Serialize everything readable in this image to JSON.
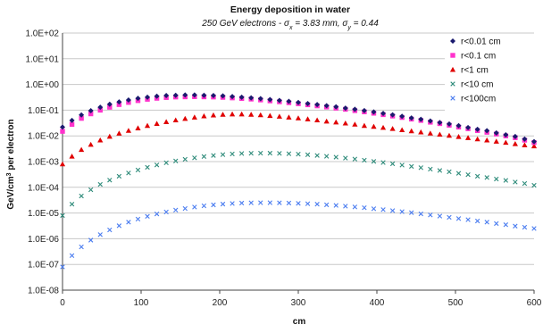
{
  "chart_data": {
    "type": "scatter",
    "title": "Energy deposition in water",
    "subtitle": {
      "prefix": "250 GeV electrons - σ",
      "sub1": "x",
      "mid": " = 3.83 mm, σ",
      "sub2": "y",
      "suffix": " = 0.44"
    },
    "xlabel": "cm",
    "ylabel": {
      "prefix": "GeV/cm",
      "sup": "3",
      "suffix": " per electron"
    },
    "x_scale": "linear",
    "y_scale": "log",
    "xlim": [
      0,
      600
    ],
    "ylim": [
      1e-08,
      100
    ],
    "x_ticks": [
      "0",
      "100",
      "200",
      "300",
      "400",
      "500",
      "600"
    ],
    "y_ticks": [
      "1.0E+02",
      "1.0E+01",
      "1.0E+00",
      "1.0E-01",
      "1.0E-02",
      "1.0E-03",
      "1.0E-04",
      "1.0E-05",
      "1.0E-06",
      "1.0E-07",
      "1.0E-08"
    ],
    "grid": "horizontal",
    "legend_position": "top-right",
    "x": [
      0,
      12,
      24,
      36,
      48,
      60,
      72,
      84,
      96,
      108,
      120,
      132,
      144,
      156,
      168,
      180,
      192,
      204,
      216,
      228,
      240,
      252,
      264,
      276,
      288,
      300,
      312,
      324,
      336,
      348,
      360,
      372,
      384,
      396,
      408,
      420,
      432,
      444,
      456,
      468,
      480,
      492,
      504,
      516,
      528,
      540,
      552,
      564,
      576,
      588,
      600
    ],
    "series": [
      {
        "name": "r<0.01 cm",
        "marker": "diamond",
        "color": "#1a1a6e",
        "values": [
          0.022,
          0.04,
          0.065,
          0.095,
          0.13,
          0.17,
          0.21,
          0.25,
          0.29,
          0.32,
          0.35,
          0.37,
          0.38,
          0.39,
          0.39,
          0.38,
          0.37,
          0.36,
          0.34,
          0.32,
          0.3,
          0.28,
          0.26,
          0.24,
          0.22,
          0.2,
          0.18,
          0.165,
          0.15,
          0.135,
          0.12,
          0.108,
          0.096,
          0.085,
          0.075,
          0.066,
          0.058,
          0.05,
          0.044,
          0.038,
          0.033,
          0.029,
          0.025,
          0.021,
          0.018,
          0.016,
          0.013,
          0.011,
          0.0095,
          0.0075,
          0.006
        ]
      },
      {
        "name": "r<0.1 cm",
        "marker": "square",
        "color": "#ff33cc",
        "values": [
          0.015,
          0.028,
          0.048,
          0.072,
          0.1,
          0.13,
          0.165,
          0.2,
          0.235,
          0.265,
          0.29,
          0.31,
          0.325,
          0.33,
          0.335,
          0.33,
          0.325,
          0.315,
          0.3,
          0.285,
          0.27,
          0.25,
          0.23,
          0.212,
          0.195,
          0.178,
          0.162,
          0.147,
          0.133,
          0.12,
          0.108,
          0.096,
          0.086,
          0.076,
          0.067,
          0.059,
          0.052,
          0.045,
          0.04,
          0.034,
          0.03,
          0.026,
          0.022,
          0.019,
          0.016,
          0.0138,
          0.0118,
          0.01,
          0.0085,
          0.0068,
          0.0055
        ]
      },
      {
        "name": "r<1 cm",
        "marker": "triangle",
        "color": "#e00000",
        "values": [
          0.0008,
          0.0016,
          0.0029,
          0.0046,
          0.0068,
          0.0095,
          0.0125,
          0.016,
          0.02,
          0.025,
          0.03,
          0.035,
          0.041,
          0.047,
          0.053,
          0.059,
          0.064,
          0.068,
          0.07,
          0.07,
          0.068,
          0.065,
          0.061,
          0.057,
          0.053,
          0.049,
          0.045,
          0.041,
          0.037,
          0.034,
          0.031,
          0.028,
          0.025,
          0.023,
          0.021,
          0.019,
          0.017,
          0.0155,
          0.014,
          0.0126,
          0.0114,
          0.0103,
          0.0093,
          0.0084,
          0.0075,
          0.0068,
          0.0061,
          0.0055,
          0.0049,
          0.0044,
          0.004
        ]
      },
      {
        "name": "r<10 cm",
        "marker": "x",
        "color": "#2e8b7a",
        "values": [
          8e-06,
          2.2e-05,
          4.6e-05,
          8e-05,
          0.00013,
          0.00019,
          0.00027,
          0.00036,
          0.00047,
          0.0006,
          0.00074,
          0.0009,
          0.00106,
          0.00123,
          0.0014,
          0.00157,
          0.00173,
          0.00187,
          0.00198,
          0.00206,
          0.00211,
          0.00213,
          0.00212,
          0.00208,
          0.00202,
          0.00194,
          0.00184,
          0.00173,
          0.00161,
          0.00149,
          0.00137,
          0.00125,
          0.00113,
          0.00102,
          0.00092,
          0.00082,
          0.00073,
          0.00065,
          0.00058,
          0.00051,
          0.00045,
          0.0004,
          0.00035,
          0.00031,
          0.00027,
          0.00024,
          0.00021,
          0.000185,
          0.00016,
          0.00014,
          0.00012
        ]
      },
      {
        "name": "r<100cm",
        "marker": "x",
        "color": "#4a7cf0",
        "values": [
          8e-08,
          2.2e-07,
          4.8e-07,
          8.8e-07,
          1.45e-06,
          2.2e-06,
          3.2e-06,
          4.4e-06,
          5.8e-06,
          7.4e-06,
          9.2e-06,
          1.1e-05,
          1.3e-05,
          1.5e-05,
          1.7e-05,
          1.9e-05,
          2.07e-05,
          2.22e-05,
          2.34e-05,
          2.43e-05,
          2.49e-05,
          2.52e-05,
          2.52e-05,
          2.5e-05,
          2.45e-05,
          2.38e-05,
          2.3e-05,
          2.2e-05,
          2.09e-05,
          1.97e-05,
          1.85e-05,
          1.72e-05,
          1.6e-05,
          1.47e-05,
          1.35e-05,
          1.24e-05,
          1.13e-05,
          1.03e-05,
          9.3e-06,
          8.4e-06,
          7.6e-06,
          6.8e-06,
          6.1e-06,
          5.5e-06,
          4.9e-06,
          4.4e-06,
          3.9e-06,
          3.5e-06,
          3.1e-06,
          2.8e-06,
          2.5e-06
        ]
      }
    ]
  }
}
